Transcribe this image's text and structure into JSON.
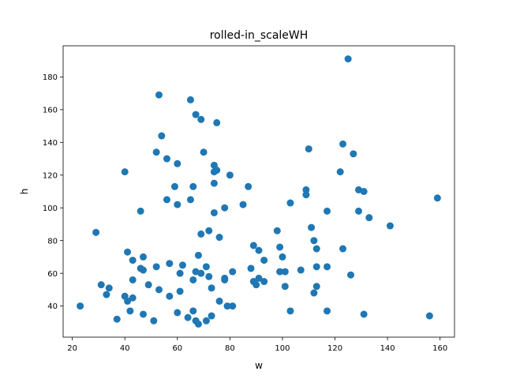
{
  "chart_data": {
    "type": "scatter",
    "title": "rolled-in_scaleWH",
    "xlabel": "w",
    "ylabel": "h",
    "xlim": [
      16.5,
      165.5
    ],
    "ylim": [
      21,
      199
    ],
    "xticks": [
      20,
      40,
      60,
      80,
      100,
      120,
      140,
      160
    ],
    "yticks": [
      40,
      60,
      80,
      100,
      120,
      140,
      160,
      180
    ],
    "grid": false,
    "legend": "none",
    "marker_color": "#1f77b4",
    "series": [
      {
        "points": [
          [
            23,
            40
          ],
          [
            29,
            85
          ],
          [
            31,
            53
          ],
          [
            33,
            47
          ],
          [
            34,
            51
          ],
          [
            37,
            32
          ],
          [
            40,
            122
          ],
          [
            40,
            46
          ],
          [
            41,
            73
          ],
          [
            41,
            43
          ],
          [
            42,
            37
          ],
          [
            43,
            68
          ],
          [
            43,
            56
          ],
          [
            43,
            45
          ],
          [
            46,
            98
          ],
          [
            46,
            63
          ],
          [
            47,
            70
          ],
          [
            47,
            62
          ],
          [
            47,
            35
          ],
          [
            49,
            53
          ],
          [
            51,
            31
          ],
          [
            52,
            134
          ],
          [
            52,
            64
          ],
          [
            53,
            169
          ],
          [
            53,
            50
          ],
          [
            54,
            144
          ],
          [
            56,
            130
          ],
          [
            56,
            105
          ],
          [
            57,
            66
          ],
          [
            57,
            46
          ],
          [
            59,
            113
          ],
          [
            60,
            127
          ],
          [
            60,
            102
          ],
          [
            60,
            36
          ],
          [
            61,
            60
          ],
          [
            61,
            49
          ],
          [
            62,
            65
          ],
          [
            64,
            33
          ],
          [
            65,
            166
          ],
          [
            65,
            105
          ],
          [
            66,
            113
          ],
          [
            66,
            56
          ],
          [
            66,
            37
          ],
          [
            67,
            157
          ],
          [
            67,
            61
          ],
          [
            67,
            31
          ],
          [
            68,
            71
          ],
          [
            68,
            29
          ],
          [
            69,
            154
          ],
          [
            69,
            84
          ],
          [
            69,
            60
          ],
          [
            70,
            134
          ],
          [
            71,
            64
          ],
          [
            71,
            31
          ],
          [
            72,
            86
          ],
          [
            72,
            58
          ],
          [
            73,
            51
          ],
          [
            73,
            34
          ],
          [
            74,
            126
          ],
          [
            74,
            122
          ],
          [
            74,
            115
          ],
          [
            74,
            97
          ],
          [
            75,
            152
          ],
          [
            75,
            123
          ],
          [
            76,
            82
          ],
          [
            76,
            43
          ],
          [
            78,
            100
          ],
          [
            78,
            57
          ],
          [
            78,
            56
          ],
          [
            79,
            40
          ],
          [
            80,
            120
          ],
          [
            81,
            61
          ],
          [
            81,
            40
          ],
          [
            85,
            102
          ],
          [
            87,
            113
          ],
          [
            88,
            63
          ],
          [
            89,
            77
          ],
          [
            89,
            55
          ],
          [
            90,
            53
          ],
          [
            91,
            74
          ],
          [
            91,
            57
          ],
          [
            93,
            68
          ],
          [
            93,
            55
          ],
          [
            98,
            86
          ],
          [
            99,
            76
          ],
          [
            99,
            61
          ],
          [
            100,
            70
          ],
          [
            101,
            61
          ],
          [
            101,
            52
          ],
          [
            103,
            103
          ],
          [
            103,
            37
          ],
          [
            107,
            62
          ],
          [
            109,
            111
          ],
          [
            109,
            108
          ],
          [
            110,
            136
          ],
          [
            111,
            88
          ],
          [
            112,
            80
          ],
          [
            112,
            48
          ],
          [
            113,
            75
          ],
          [
            113,
            64
          ],
          [
            113,
            52
          ],
          [
            117,
            98
          ],
          [
            117,
            64
          ],
          [
            117,
            37
          ],
          [
            122,
            122
          ],
          [
            123,
            139
          ],
          [
            123,
            75
          ],
          [
            125,
            191
          ],
          [
            126,
            59
          ],
          [
            127,
            133
          ],
          [
            129,
            111
          ],
          [
            129,
            98
          ],
          [
            131,
            110
          ],
          [
            131,
            35
          ],
          [
            133,
            94
          ],
          [
            141,
            89
          ],
          [
            156,
            34
          ],
          [
            159,
            106
          ]
        ]
      }
    ]
  }
}
